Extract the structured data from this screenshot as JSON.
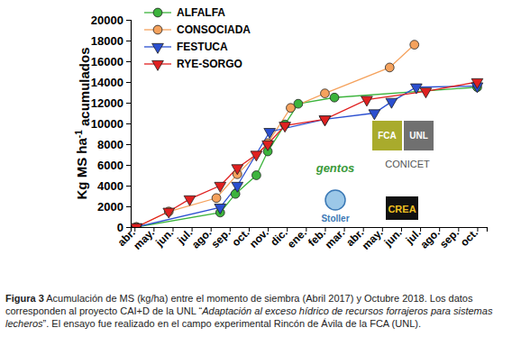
{
  "chart_data": {
    "type": "line",
    "y_label": [
      "Kg MS ha",
      "-1",
      " acumulados"
    ],
    "xlim": [
      -0.2,
      18.5
    ],
    "xticks": [
      {
        "value": 0,
        "label": "abr."
      },
      {
        "value": 1,
        "label": "may."
      },
      {
        "value": 2,
        "label": "jun."
      },
      {
        "value": 3,
        "label": "jul."
      },
      {
        "value": 4,
        "label": "ago."
      },
      {
        "value": 5,
        "label": "sep."
      },
      {
        "value": 6,
        "label": "oct."
      },
      {
        "value": 7,
        "label": "nov."
      },
      {
        "value": 8,
        "label": "dic."
      },
      {
        "value": 9,
        "label": "ene."
      },
      {
        "value": 10,
        "label": "feb."
      },
      {
        "value": 11,
        "label": "mar."
      },
      {
        "value": 12,
        "label": "abr."
      },
      {
        "value": 13,
        "label": "may."
      },
      {
        "value": 14,
        "label": "jun."
      },
      {
        "value": 15,
        "label": "jul."
      },
      {
        "value": 16,
        "label": "ago."
      },
      {
        "value": 17,
        "label": "sep."
      },
      {
        "value": 18,
        "label": "oct."
      }
    ],
    "ylim": [
      0,
      20000
    ],
    "yticks": [
      0,
      2000,
      4000,
      6000,
      8000,
      10000,
      12000,
      14000,
      16000,
      18000,
      20000
    ],
    "legend": "upper-left",
    "series": [
      {
        "name": "ALFALFA",
        "color": "#3cb43c",
        "marker": "circle",
        "x": [
          0.1,
          4.5,
          5.3,
          6.4,
          7.0,
          7.9,
          8.6,
          10.5,
          18.0
        ],
        "values": [
          0,
          1400,
          3200,
          5000,
          7300,
          9900,
          11900,
          12500,
          13500
        ]
      },
      {
        "name": "CONSOCIADA",
        "color": "#f5a25d",
        "marker": "circle",
        "x": [
          0.1,
          1.8,
          4.3,
          5.4,
          7.0,
          8.2,
          10.0,
          13.4,
          14.7
        ],
        "values": [
          0,
          1500,
          2800,
          5100,
          8100,
          11500,
          12900,
          15400,
          17600
        ]
      },
      {
        "name": "FESTUCA",
        "color": "#2b4fd0",
        "marker": "triangle-down",
        "x": [
          0.1,
          4.5,
          5.4,
          7.1,
          10.0,
          12.6,
          13.5,
          14.8,
          18.0
        ],
        "values": [
          0,
          1900,
          4000,
          9200,
          10400,
          11000,
          12100,
          13500,
          13600
        ]
      },
      {
        "name": "RYE-SORGO",
        "color": "#e02020",
        "marker": "triangle-down",
        "x": [
          0.1,
          1.8,
          2.9,
          4.5,
          5.4,
          6.4,
          7.0,
          7.9,
          10.0,
          12.2,
          15.3,
          18.0
        ],
        "values": [
          0,
          1500,
          2700,
          4000,
          5700,
          7000,
          8000,
          9800,
          10400,
          12300,
          13100,
          14000
        ]
      }
    ],
    "annotations": [
      "FCA",
      "UNL",
      "gentos",
      "CONICET",
      "Stoller",
      "CREA"
    ],
    "caption_label": "Figura 3",
    "caption": [
      " Acumulación de MS (kg/ha) entre el momento de siembra (Abril 2017) y Octubre 2018. Los datos corresponden al proyecto CAI+D de la UNL “",
      "Adaptación al exceso hídrico de recursos forrajeros para sistemas lecheros",
      "”. El ensayo fue realizado en el campo experimental Rincón de Ávila de la FCA (UNL)."
    ]
  }
}
